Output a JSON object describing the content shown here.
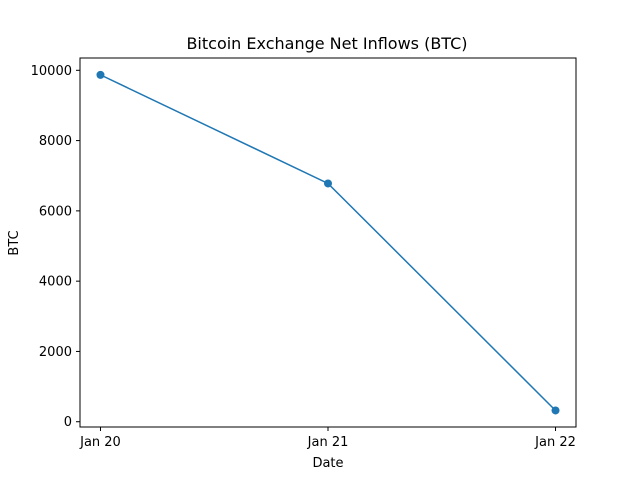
{
  "chart_data": {
    "type": "line",
    "title": "Bitcoin Exchange Net Inflows (BTC)",
    "xlabel": "Date",
    "ylabel": "BTC",
    "categories": [
      "Jan 20",
      "Jan 21",
      "Jan 22"
    ],
    "series": [
      {
        "values": [
          9870,
          6780,
          320
        ],
        "color": "#1f77b4",
        "marker": "circle"
      }
    ],
    "ylim": [
      -150,
      10350
    ],
    "yticks": [
      0,
      2000,
      4000,
      6000,
      8000,
      10000
    ],
    "grid": false,
    "legend": "none"
  }
}
